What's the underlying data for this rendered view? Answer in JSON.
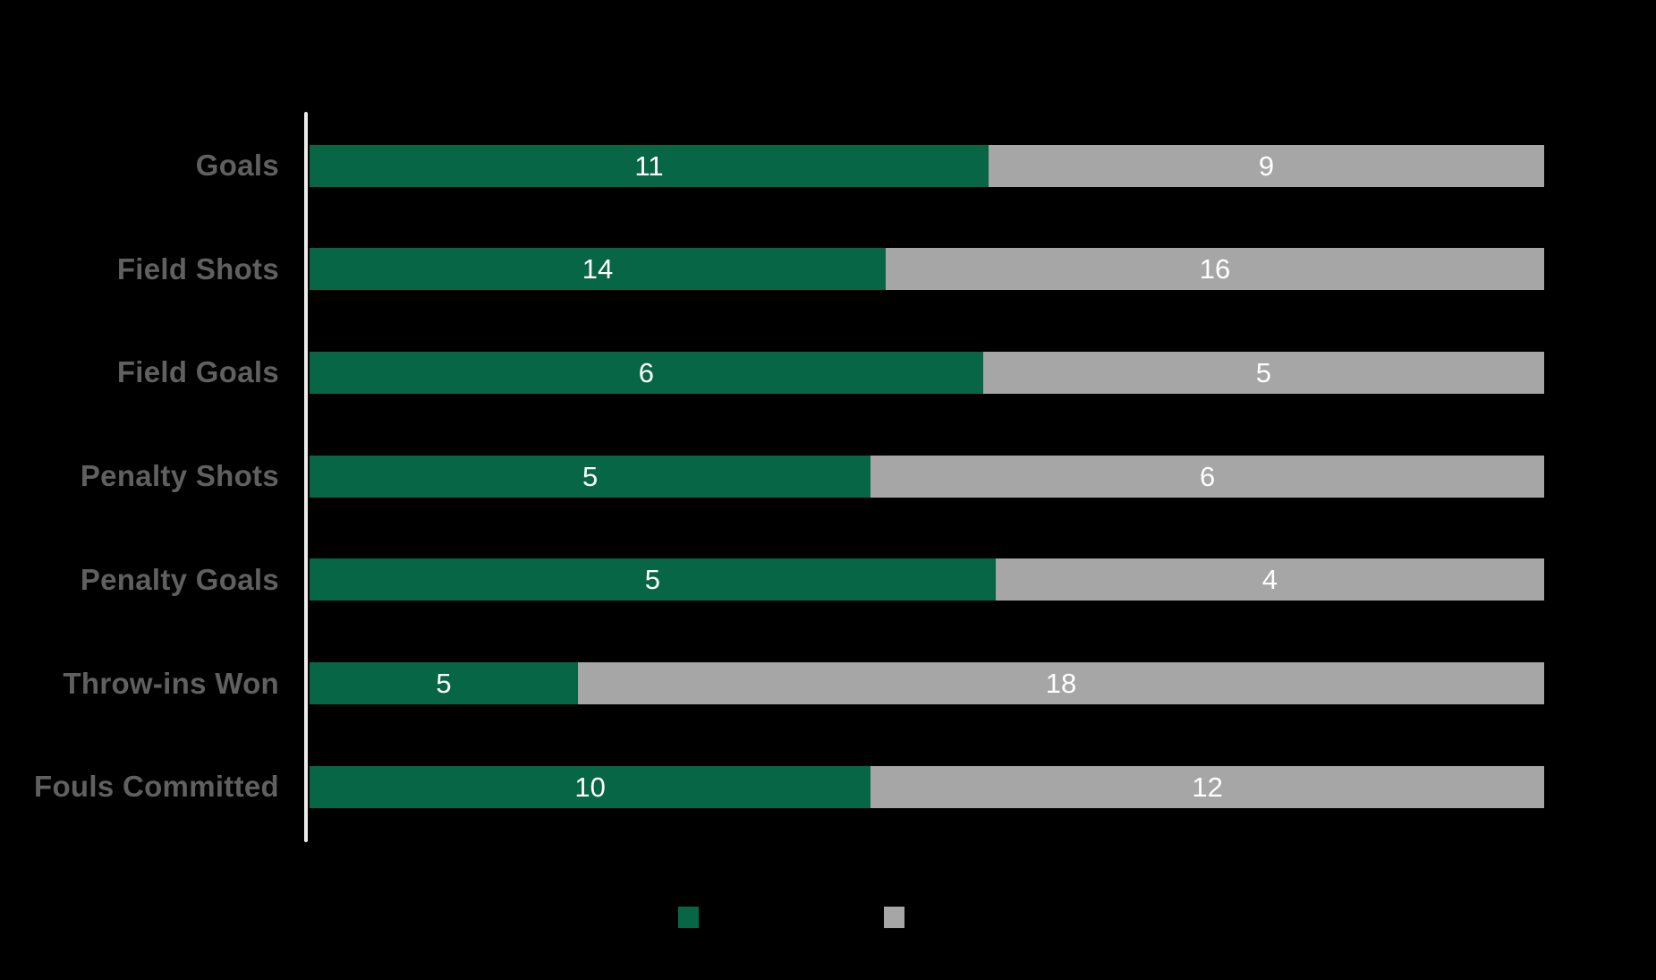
{
  "chart_data": {
    "type": "bar",
    "variant": "horizontal-proportional-stacked",
    "title": "",
    "xlabel": "",
    "ylabel": "",
    "categories": [
      "Goals",
      "Field Shots",
      "Field Goals",
      "Penalty Shots",
      "Penalty Goals",
      "Throw-ins Won",
      "Fouls Committed"
    ],
    "series": [
      {
        "name": "green",
        "color": "#076646",
        "values": [
          11,
          14,
          6,
          5,
          5,
          5,
          10
        ]
      },
      {
        "name": "gray",
        "color": "#a6a6a6",
        "values": [
          9,
          16,
          5,
          6,
          4,
          18,
          12
        ]
      }
    ],
    "value_labels": "inside-center",
    "legend_position": "bottom",
    "legend_text_visible": false,
    "grid": false,
    "colors": {
      "background": "#000000",
      "axis_line": "#ececec",
      "category_label": "#606060",
      "value_label": "#ffffff"
    }
  }
}
